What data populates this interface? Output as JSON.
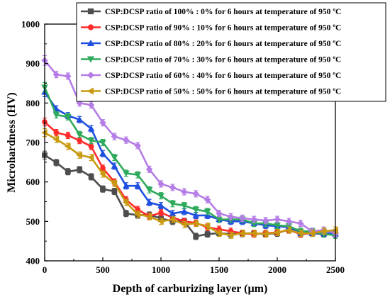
{
  "chart_data": {
    "type": "line",
    "xlabel": "Depth of carburizing layer (µm)",
    "ylabel": "Microhardness (HV)",
    "xlim": [
      0,
      2500
    ],
    "ylim": [
      400,
      1000
    ],
    "xticks": [
      0,
      500,
      1000,
      1500,
      2000,
      2500
    ],
    "yticks": [
      400,
      500,
      600,
      700,
      800,
      900,
      1000
    ],
    "xtick_labels": [
      "0",
      "500",
      "1000",
      "1500",
      "2000",
      "2500"
    ],
    "ytick_labels": [
      "400",
      "500",
      "600",
      "700",
      "800",
      "900",
      "1000"
    ],
    "grid": false,
    "legend_position": "top-right",
    "x": [
      0,
      100,
      200,
      300,
      400,
      500,
      600,
      700,
      800,
      900,
      1000,
      1100,
      1200,
      1300,
      1400,
      1500,
      1600,
      1700,
      1800,
      1900,
      2000,
      2100,
      2200,
      2300,
      2400,
      2500
    ],
    "series": [
      {
        "name": "CSP:DCSP ratio of 100% : 0% for 6 hours at temperature of 950 ºC",
        "color": "#4d4d4d",
        "marker": "square",
        "values": [
          668,
          649,
          626,
          631,
          613,
          582,
          576,
          520,
          516,
          516,
          508,
          500,
          500,
          462,
          468,
          470,
          468,
          469,
          469,
          468,
          470,
          480,
          468,
          470,
          468,
          472
        ],
        "errors": [
          10,
          8,
          8,
          8,
          8,
          8,
          8,
          8,
          8,
          8,
          8,
          8,
          8,
          8,
          8,
          8,
          8,
          8,
          8,
          8,
          8,
          8,
          8,
          8,
          8,
          8
        ]
      },
      {
        "name": "CSP:DCSP ratio of 90% : 10% for 6 hours at temperature of 950 ºC",
        "color": "#ff2a2a",
        "marker": "circle",
        "values": [
          752,
          725,
          718,
          705,
          690,
          635,
          600,
          555,
          530,
          513,
          522,
          510,
          500,
          496,
          485,
          480,
          475,
          470,
          468,
          470,
          472,
          478,
          468,
          470,
          470,
          468
        ],
        "errors": [
          10,
          8,
          8,
          8,
          8,
          8,
          8,
          8,
          8,
          8,
          8,
          8,
          8,
          8,
          8,
          8,
          8,
          8,
          8,
          8,
          8,
          8,
          8,
          8,
          8,
          8
        ]
      },
      {
        "name": "CSP:DCSP ratio of 80% : 20% for 6 hours at temperature of 950 ºC",
        "color": "#1f4fe0",
        "marker": "triangle-up",
        "values": [
          828,
          785,
          768,
          758,
          735,
          672,
          640,
          590,
          590,
          548,
          540,
          520,
          525,
          515,
          515,
          505,
          500,
          500,
          495,
          490,
          488,
          485,
          472,
          470,
          470,
          468
        ],
        "errors": [
          12,
          8,
          8,
          8,
          8,
          8,
          8,
          8,
          8,
          8,
          8,
          8,
          8,
          8,
          8,
          8,
          8,
          8,
          8,
          8,
          8,
          8,
          8,
          8,
          8,
          8
        ]
      },
      {
        "name": "CSP:DCSP ratio of 70% : 30% for 6 hours at temperature of 950 ºC",
        "color": "#2eaa5c",
        "marker": "triangle-down",
        "values": [
          840,
          770,
          765,
          720,
          705,
          700,
          662,
          622,
          618,
          580,
          565,
          545,
          540,
          530,
          525,
          505,
          505,
          505,
          495,
          495,
          490,
          488,
          475,
          475,
          468,
          465
        ],
        "errors": [
          12,
          8,
          8,
          8,
          8,
          8,
          8,
          8,
          8,
          8,
          8,
          8,
          8,
          8,
          8,
          8,
          8,
          8,
          8,
          8,
          8,
          8,
          8,
          8,
          8,
          8
        ]
      },
      {
        "name": "CSP:DCSP ratio of 60% : 40% for 6 hours at temperature of 950 ºC",
        "color": "#b57de6",
        "marker": "diamond",
        "values": [
          908,
          872,
          868,
          800,
          795,
          750,
          715,
          706,
          692,
          632,
          595,
          586,
          575,
          570,
          555,
          520,
          512,
          508,
          505,
          502,
          505,
          500,
          495,
          475,
          478,
          470
        ],
        "errors": [
          12,
          8,
          8,
          8,
          8,
          8,
          8,
          8,
          8,
          8,
          8,
          8,
          8,
          8,
          8,
          8,
          8,
          8,
          8,
          8,
          8,
          8,
          8,
          8,
          8,
          8
        ]
      },
      {
        "name": "CSP:DCSP ratio of 50% : 50% for 6 hours at temperature of 950 ºC",
        "color": "#c89a10",
        "marker": "triangle-left",
        "values": [
          725,
          708,
          690,
          668,
          662,
          620,
          596,
          548,
          518,
          512,
          500,
          505,
          492,
          495,
          488,
          470,
          465,
          470,
          470,
          468,
          472,
          478,
          470,
          470,
          475,
          478
        ],
        "errors": [
          10,
          8,
          8,
          8,
          8,
          8,
          8,
          8,
          8,
          8,
          8,
          8,
          8,
          8,
          8,
          8,
          8,
          8,
          8,
          8,
          8,
          8,
          8,
          8,
          8,
          8
        ]
      }
    ]
  }
}
